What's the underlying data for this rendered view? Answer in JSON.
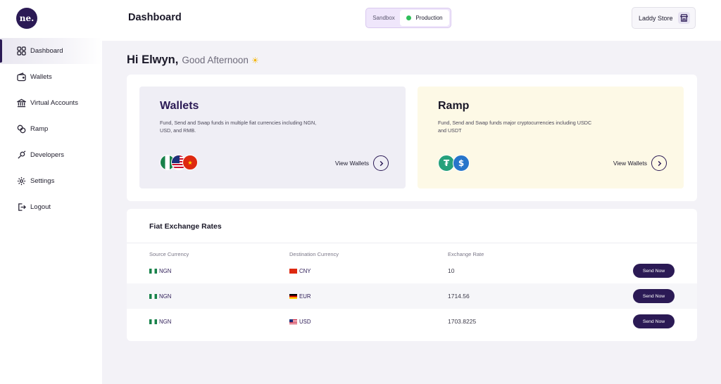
{
  "sidebar": {
    "logo_text": "ne.",
    "items": [
      {
        "label": "Dashboard",
        "icon": "grid-icon",
        "active": true
      },
      {
        "label": "Wallets",
        "icon": "wallet-icon"
      },
      {
        "label": "Virtual Accounts",
        "icon": "bank-icon"
      },
      {
        "label": "Ramp",
        "icon": "ramp-icon"
      },
      {
        "label": "Developers",
        "icon": "developers-icon"
      },
      {
        "label": "Settings",
        "icon": "gear-icon"
      },
      {
        "label": "Logout",
        "icon": "logout-icon"
      }
    ]
  },
  "header": {
    "title": "Dashboard",
    "env": {
      "sandbox": "Sandbox",
      "production": "Production",
      "selected": "Production"
    },
    "store": {
      "label": "Laddy Store",
      "icon": "store-icon"
    }
  },
  "greeting": {
    "name": "Hi Elwyn,",
    "message": "Good Afternoon",
    "icon": "sun-icon"
  },
  "cards": {
    "wallets": {
      "title": "Wallets",
      "description": "Fund, Send and Swap funds in multiple fiat currencies including NGN, USD, and RMB.",
      "link": "View Wallets",
      "flags": [
        "nigeria-flag-icon",
        "usa-flag-icon",
        "china-flag-icon"
      ]
    },
    "ramp": {
      "title": "Ramp",
      "description": "Fund, Send and Swap funds major cryptocurrencies including USDC and USDT",
      "link": "View Wallets",
      "coins": [
        "usdt-icon",
        "usdc-icon"
      ]
    }
  },
  "rates": {
    "title": "Fiat Exchange Rates",
    "columns": [
      "Source Currency",
      "Destination Currency",
      "Exchange Rate"
    ],
    "rows": [
      {
        "source": "NGN",
        "destination": "CNY",
        "rate": "10",
        "action": "Send Now"
      },
      {
        "source": "NGN",
        "destination": "EUR",
        "rate": "1714.56",
        "action": "Send Now"
      },
      {
        "source": "NGN",
        "destination": "USD",
        "rate": "1703.8225",
        "action": "Send Now"
      }
    ]
  },
  "colors": {
    "brand": "#2b1a55",
    "success": "#2fbf5a",
    "ramp_card": "#fdf9e6",
    "wallet_card": "#efeef5"
  }
}
